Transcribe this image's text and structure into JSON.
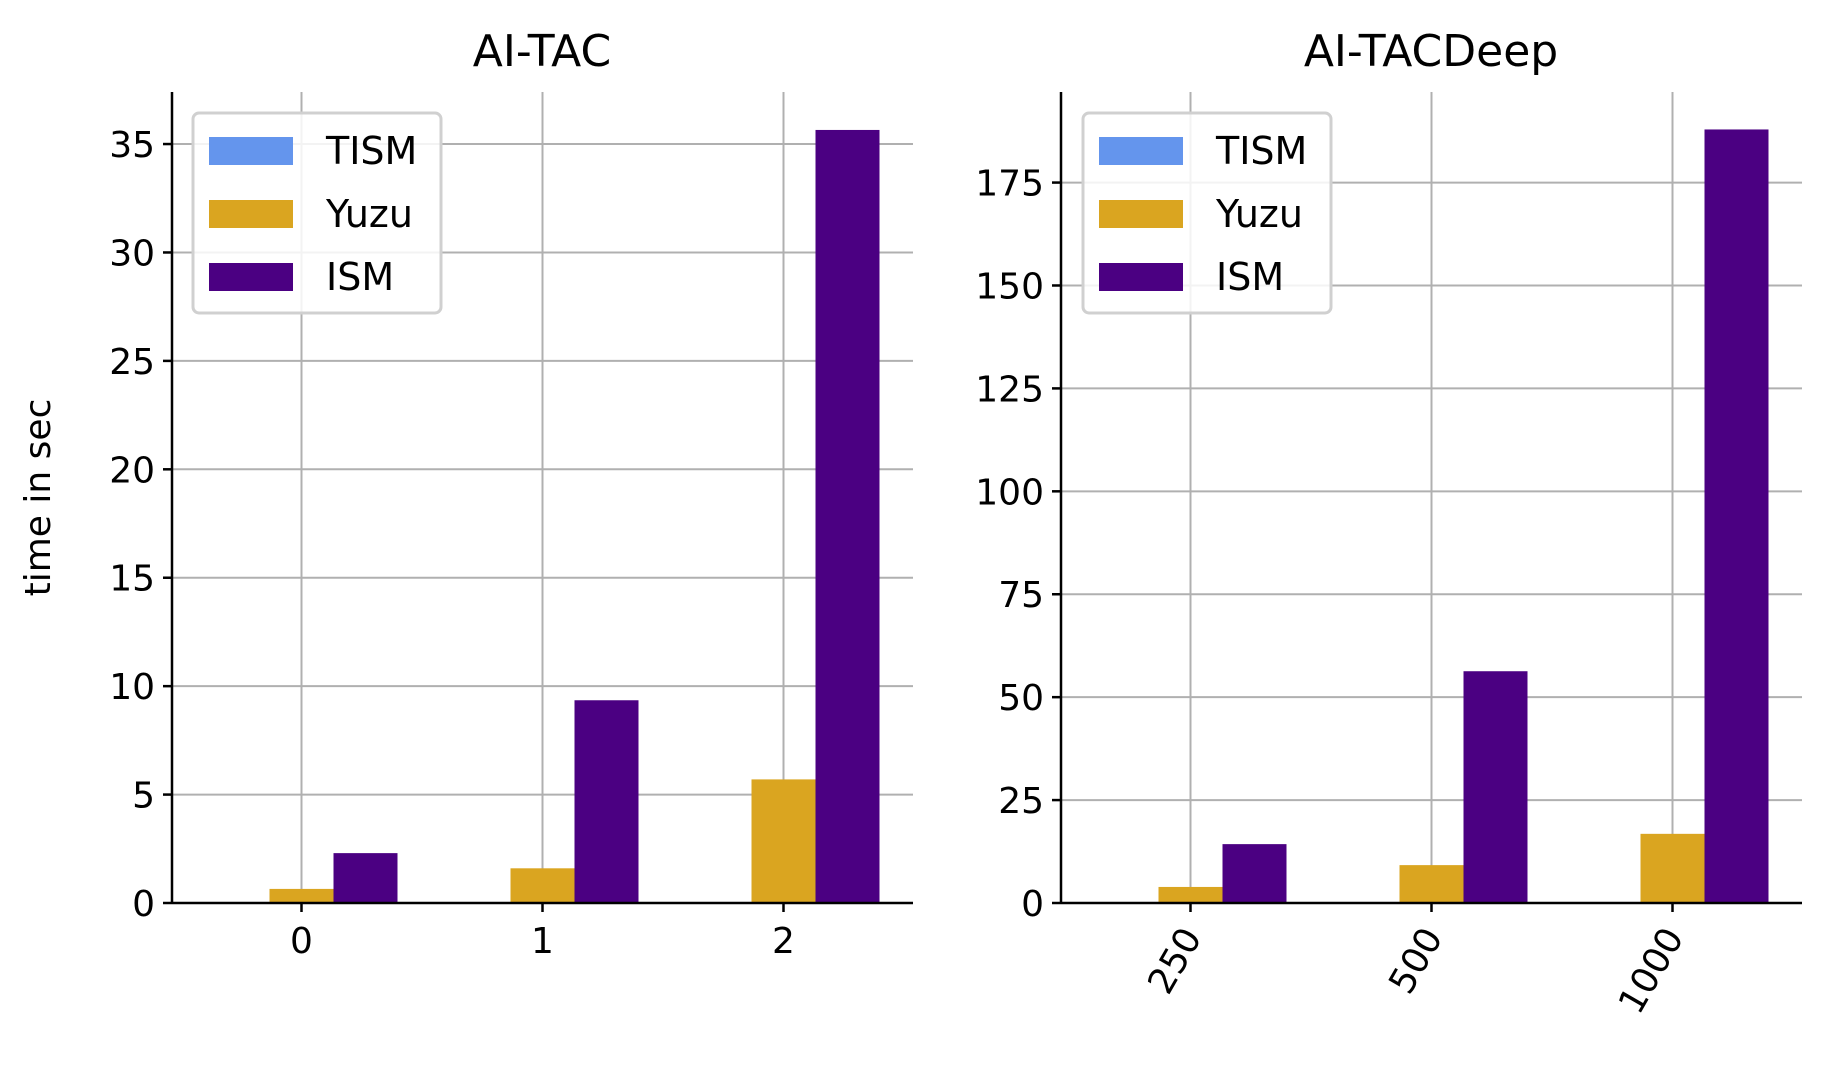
{
  "chart_data": [
    {
      "type": "bar",
      "title": "AI-TAC",
      "xlabel": "",
      "ylabel": "time in sec",
      "categories": [
        "0",
        "1",
        "2"
      ],
      "series": [
        {
          "name": "TISM",
          "color": "#6495ed",
          "values": [
            0.01,
            0.02,
            0.04
          ]
        },
        {
          "name": "Yuzu",
          "color": "#daa520",
          "values": [
            0.65,
            1.6,
            5.7
          ]
        },
        {
          "name": "ISM",
          "color": "#4b0082",
          "values": [
            2.3,
            9.35,
            35.65
          ]
        }
      ],
      "ylim": [
        0,
        37.4
      ],
      "yticks": [
        0,
        5,
        10,
        15,
        20,
        25,
        30,
        35
      ],
      "grid": true,
      "legend_position": "upper-left",
      "xtick_rotation": 0
    },
    {
      "type": "bar",
      "title": "AI-TACDeep",
      "xlabel": "",
      "ylabel": "",
      "categories": [
        "250",
        "500",
        "1000"
      ],
      "series": [
        {
          "name": "TISM",
          "color": "#6495ed",
          "values": [
            0.05,
            0.1,
            0.2
          ]
        },
        {
          "name": "Yuzu",
          "color": "#daa520",
          "values": [
            3.9,
            9.2,
            16.8
          ]
        },
        {
          "name": "ISM",
          "color": "#4b0082",
          "values": [
            14.3,
            56.3,
            187.9
          ]
        }
      ],
      "ylim": [
        0,
        197
      ],
      "yticks": [
        0,
        25,
        50,
        75,
        100,
        125,
        150,
        175
      ],
      "grid": true,
      "legend_position": "upper-left",
      "xtick_rotation": -60
    }
  ]
}
